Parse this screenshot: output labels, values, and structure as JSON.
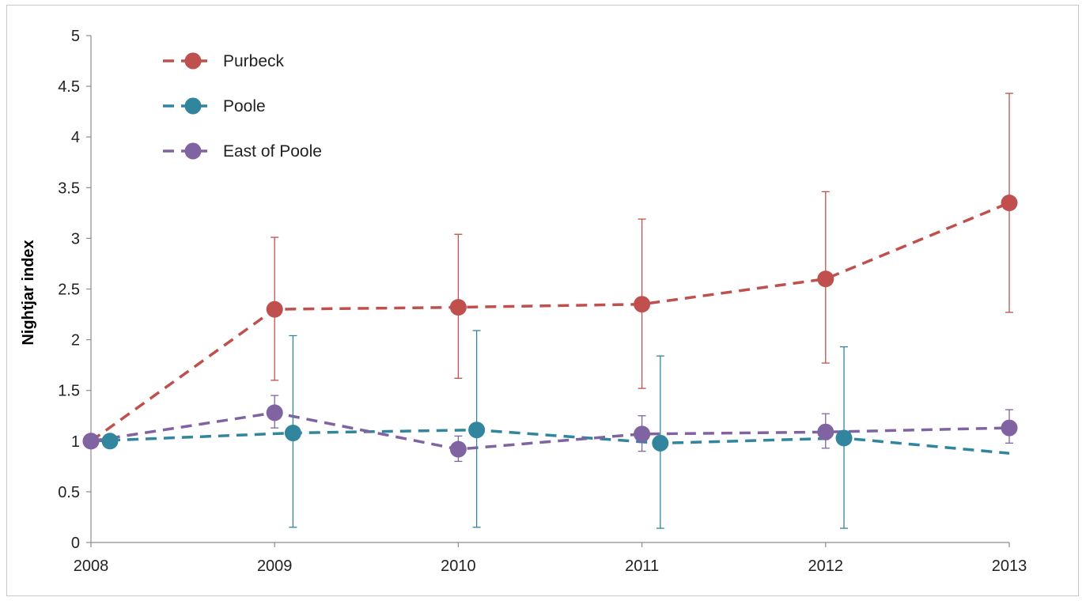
{
  "chart_data": {
    "type": "line",
    "title": "",
    "xlabel": "",
    "ylabel": "Nightjar index",
    "x": [
      "2008",
      "2009",
      "2010",
      "2011",
      "2012",
      "2013"
    ],
    "y_ticks": [
      "0",
      "0.5",
      "1",
      "1.5",
      "2",
      "2.5",
      "3",
      "3.5",
      "4",
      "4.5",
      "5"
    ],
    "ylim": [
      0,
      5
    ],
    "grid": false,
    "legend_position": "top-left",
    "series": [
      {
        "name": "Purbeck",
        "color": "#c0504d",
        "values": [
          1.0,
          2.3,
          2.32,
          2.35,
          2.6,
          3.35
        ],
        "error_low": [
          null,
          1.6,
          1.62,
          1.52,
          1.77,
          2.27
        ],
        "error_high": [
          null,
          3.01,
          3.04,
          3.19,
          3.46,
          4.43
        ],
        "x_offset": 0,
        "line_end": 3.35
      },
      {
        "name": "Poole",
        "color": "#31859c",
        "values": [
          1.0,
          1.08,
          1.11,
          0.98,
          1.03,
          null
        ],
        "error_low": [
          null,
          0.15,
          0.15,
          0.14,
          0.14,
          null
        ],
        "error_high": [
          null,
          2.04,
          2.09,
          1.84,
          1.93,
          null
        ],
        "x_offset": 0.1,
        "line_end": 0.88
      },
      {
        "name": "East of Poole",
        "color": "#8064a2",
        "values": [
          1.0,
          1.28,
          0.92,
          1.07,
          1.09,
          1.13
        ],
        "error_low": [
          null,
          1.13,
          0.8,
          0.9,
          0.93,
          0.98
        ],
        "error_high": [
          null,
          1.45,
          1.05,
          1.25,
          1.27,
          1.31
        ],
        "x_offset": 0,
        "line_end": 1.13
      }
    ]
  }
}
